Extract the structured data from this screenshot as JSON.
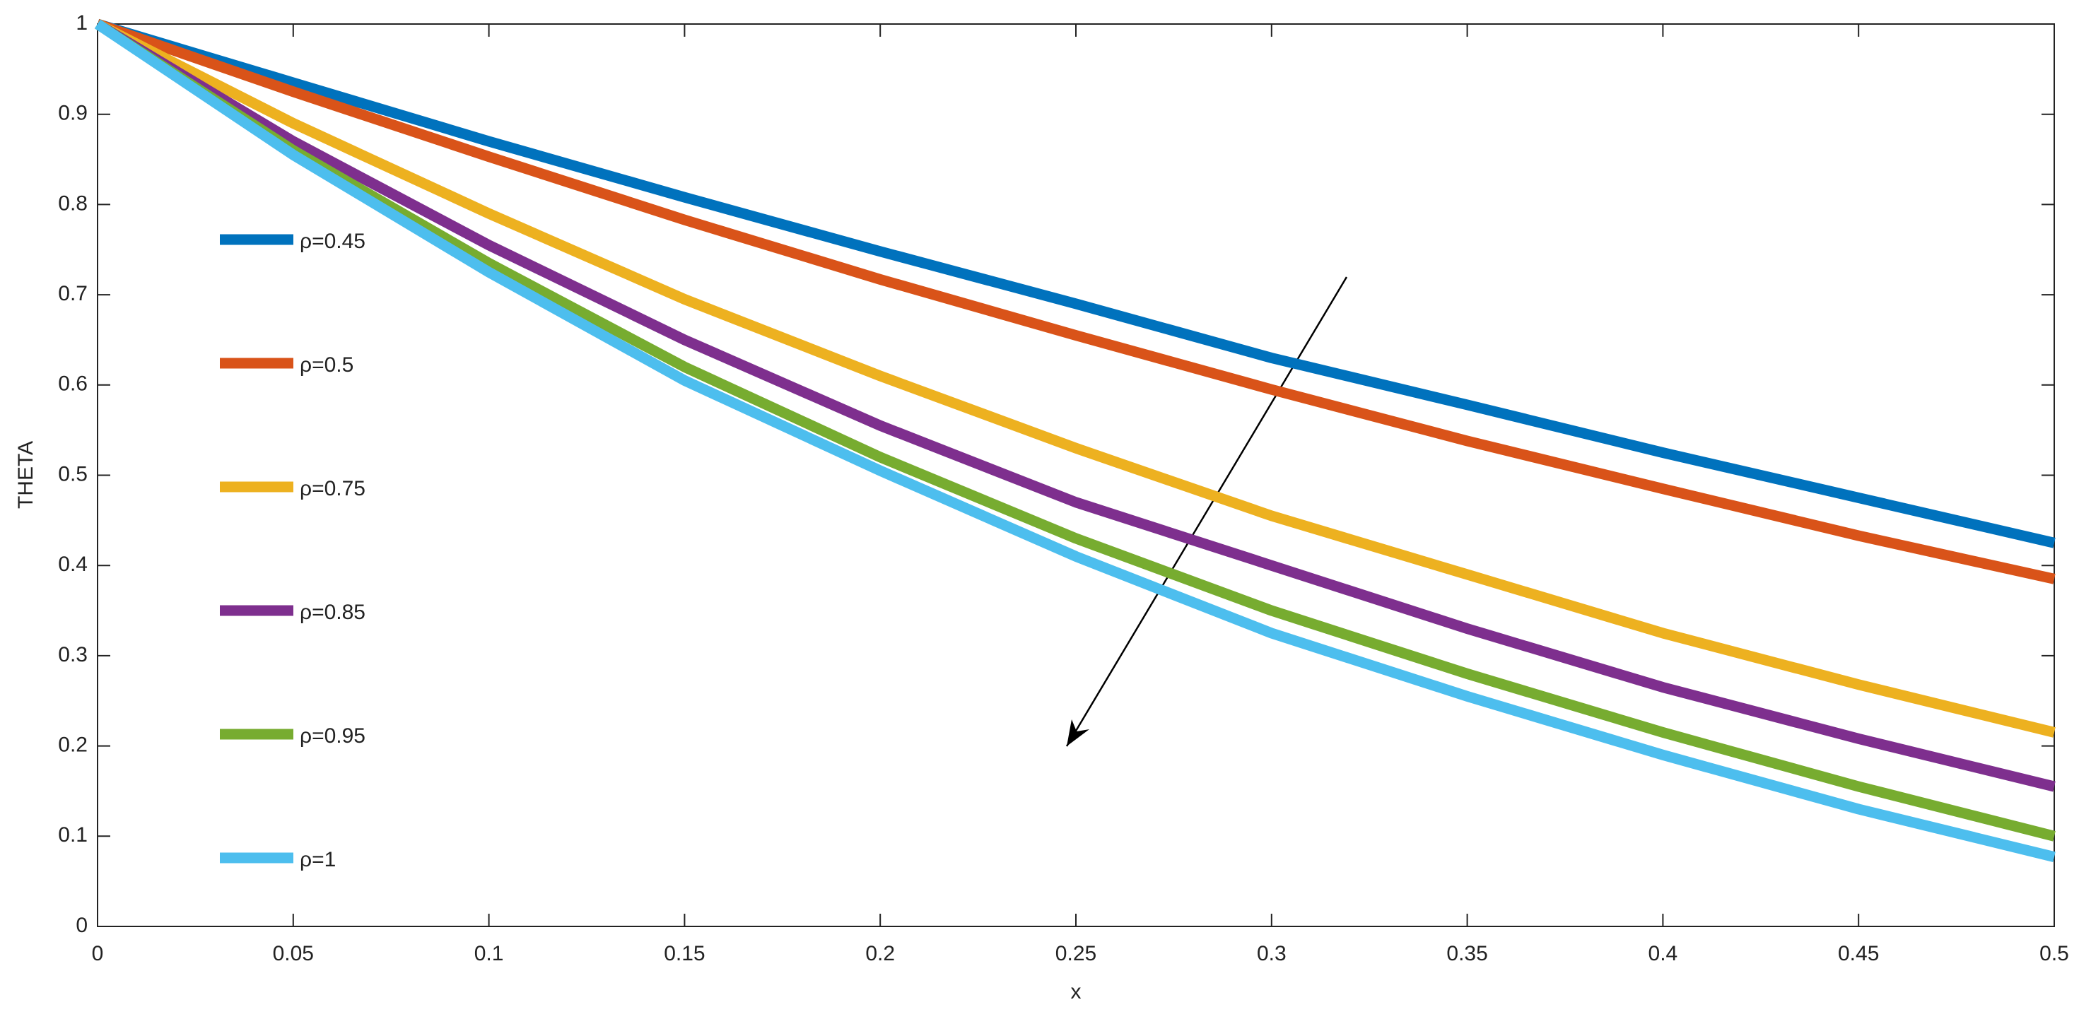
{
  "chart_data": {
    "type": "line",
    "x_label": "x",
    "y_label": "THETA",
    "x": [
      0,
      0.05,
      0.1,
      0.15,
      0.2,
      0.25,
      0.3,
      0.35,
      0.4,
      0.45,
      0.5
    ],
    "series": [
      {
        "name": "ρ=0.45",
        "color": "#0072bd",
        "values": [
          1,
          0.935,
          0.87,
          0.808,
          0.748,
          0.69,
          0.63,
          0.578,
          0.525,
          0.475,
          0.425
        ]
      },
      {
        "name": "ρ=0.5",
        "color": "#d95319",
        "values": [
          1,
          0.925,
          0.853,
          0.783,
          0.717,
          0.655,
          0.595,
          0.538,
          0.485,
          0.433,
          0.385
        ]
      },
      {
        "name": "ρ=0.75",
        "color": "#edb120",
        "values": [
          1,
          0.89,
          0.79,
          0.695,
          0.61,
          0.53,
          0.455,
          0.39,
          0.325,
          0.268,
          0.215
        ]
      },
      {
        "name": "ρ=0.85",
        "color": "#7e2f8e",
        "values": [
          1,
          0.87,
          0.755,
          0.65,
          0.555,
          0.47,
          0.4,
          0.33,
          0.265,
          0.208,
          0.155
        ]
      },
      {
        "name": "ρ=0.95",
        "color": "#77ac30",
        "values": [
          1,
          0.86,
          0.735,
          0.62,
          0.52,
          0.43,
          0.35,
          0.28,
          0.215,
          0.155,
          0.1
        ]
      },
      {
        "name": "ρ=1",
        "color": "#4dbeee",
        "values": [
          1,
          0.855,
          0.725,
          0.605,
          0.505,
          0.41,
          0.325,
          0.255,
          0.19,
          0.13,
          0.077
        ]
      }
    ],
    "xlim": [
      0,
      0.5
    ],
    "xticks": [
      0,
      0.05,
      0.1,
      0.15,
      0.2,
      0.25,
      0.3,
      0.35,
      0.4,
      0.45,
      0.5
    ],
    "ylim": [
      0,
      1
    ],
    "yticks": [
      0,
      0.1,
      0.2,
      0.3,
      0.4,
      0.5,
      0.6,
      0.7,
      0.8,
      0.9,
      1
    ]
  }
}
